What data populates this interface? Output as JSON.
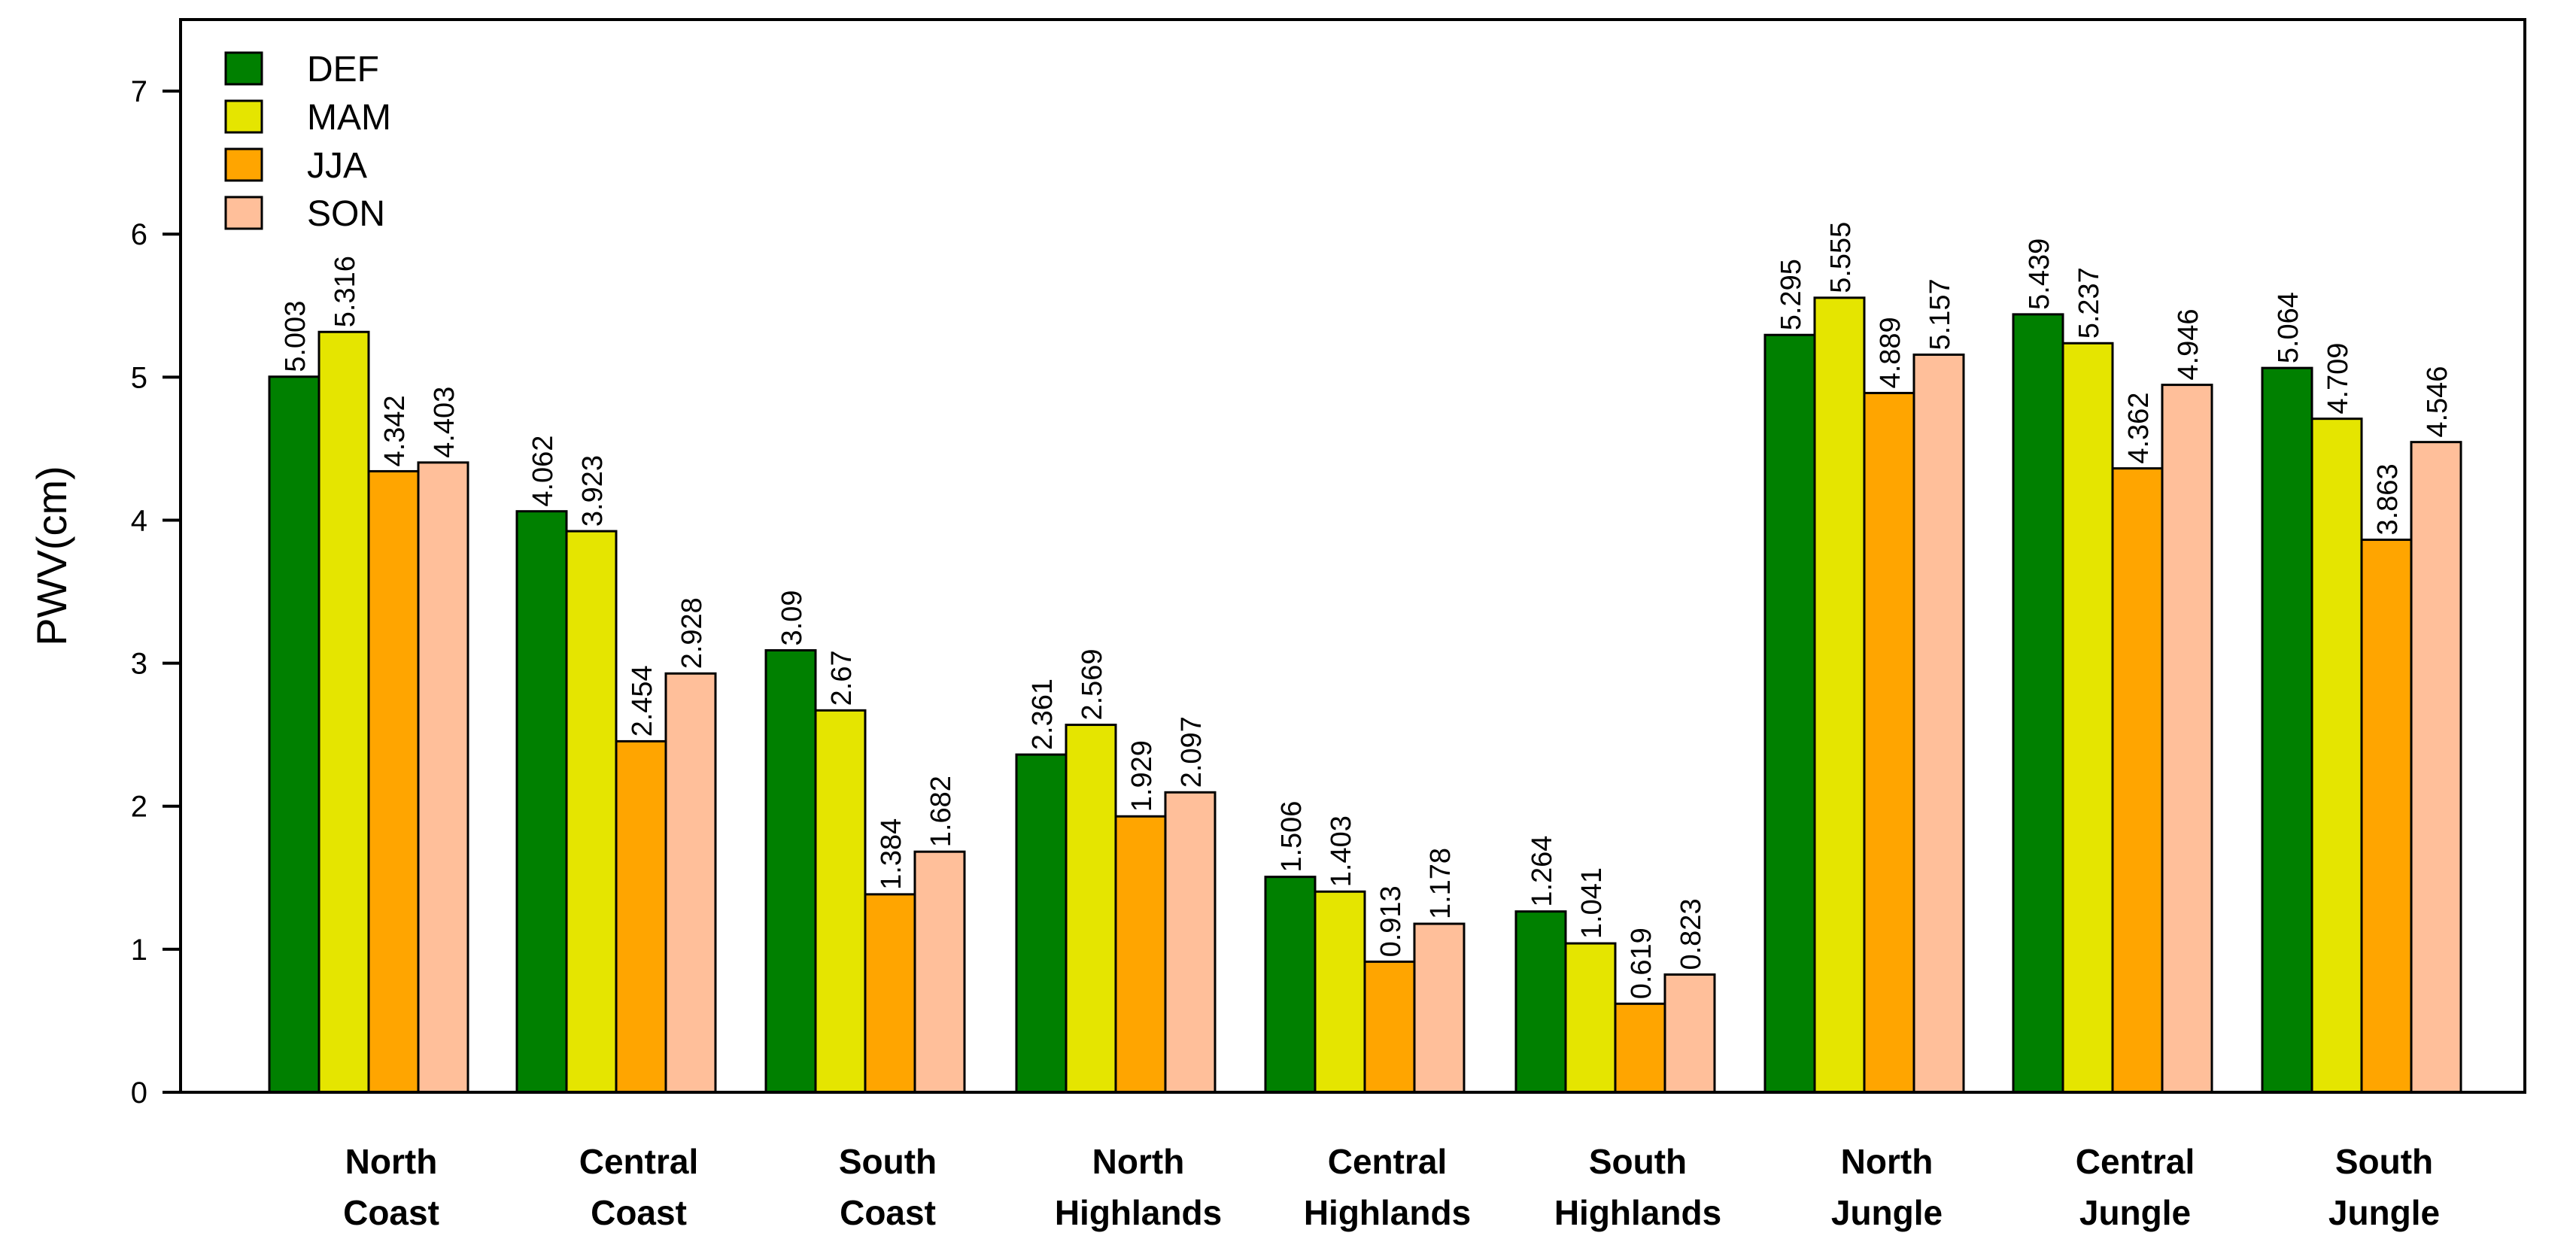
{
  "chart_data": {
    "type": "bar",
    "title": "",
    "xlabel": "",
    "ylabel": "PWV(cm)",
    "ylim": [
      0,
      7.5
    ],
    "yticks": [
      0,
      1,
      2,
      3,
      4,
      5,
      6,
      7
    ],
    "legend_position": "top-left",
    "categories": [
      [
        "North",
        "Coast"
      ],
      [
        "Central",
        "Coast"
      ],
      [
        "South",
        "Coast"
      ],
      [
        "North",
        "Highlands"
      ],
      [
        "Central",
        "Highlands"
      ],
      [
        "South",
        "Highlands"
      ],
      [
        "North",
        "Jungle"
      ],
      [
        "Central",
        "Jungle"
      ],
      [
        "South",
        "Jungle"
      ]
    ],
    "series": [
      {
        "name": "DEF",
        "color": "#008000",
        "values": [
          5.003,
          4.062,
          3.09,
          2.361,
          1.506,
          1.264,
          5.295,
          5.439,
          5.064
        ],
        "labels": [
          "5.003",
          "4.062",
          "3.09",
          "2.361",
          "1.506",
          "1.264",
          "5.295",
          "5.439",
          "5.064"
        ]
      },
      {
        "name": "MAM",
        "color": "#E5E500",
        "values": [
          5.316,
          3.923,
          2.67,
          2.569,
          1.403,
          1.041,
          5.555,
          5.237,
          4.709
        ],
        "labels": [
          "5.316",
          "3.923",
          "2.67",
          "2.569",
          "1.403",
          "1.041",
          "5.555",
          "5.237",
          "4.709"
        ]
      },
      {
        "name": "JJA",
        "color": "#FFA500",
        "values": [
          4.342,
          2.454,
          1.384,
          1.929,
          0.913,
          0.619,
          4.889,
          4.362,
          3.863
        ],
        "labels": [
          "4.342",
          "2.454",
          "1.384",
          "1.929",
          "0.913",
          "0.619",
          "4.889",
          "4.362",
          "3.863"
        ]
      },
      {
        "name": "SON",
        "color": "#FFBF9A",
        "values": [
          4.403,
          2.928,
          1.682,
          2.097,
          1.178,
          0.823,
          5.157,
          4.946,
          4.546
        ],
        "labels": [
          "4.403",
          "2.928",
          "1.682",
          "2.097",
          "1.178",
          "0.823",
          "5.157",
          "4.946",
          "4.546"
        ]
      }
    ]
  }
}
